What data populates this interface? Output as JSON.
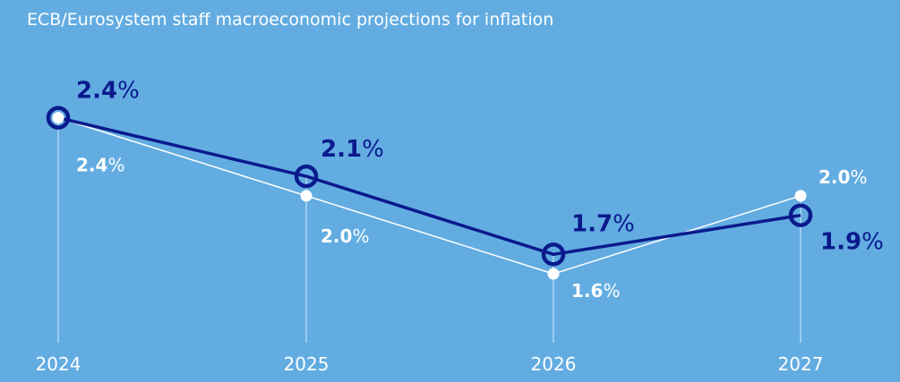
{
  "chart_data": {
    "type": "line",
    "title": "ECB/Eurosystem staff macroeconomic projections for inflation",
    "categories": [
      "2024",
      "2025",
      "2026",
      "2027"
    ],
    "series": [
      {
        "values": [
          2.4,
          2.1,
          1.7,
          1.9
        ],
        "labels": [
          "2.4%",
          "2.1%",
          "1.7%",
          "1.9%"
        ],
        "color": "#0a1a8c",
        "marker": "open-circle"
      },
      {
        "values": [
          2.4,
          2.0,
          1.6,
          2.0
        ],
        "labels": [
          "2.4%",
          "2.0%",
          "1.6%",
          "2.0%"
        ],
        "color": "#ffffff",
        "marker": "filled-dot"
      }
    ],
    "ylim": [
      1.0,
      2.6
    ],
    "grid": "vertical"
  }
}
